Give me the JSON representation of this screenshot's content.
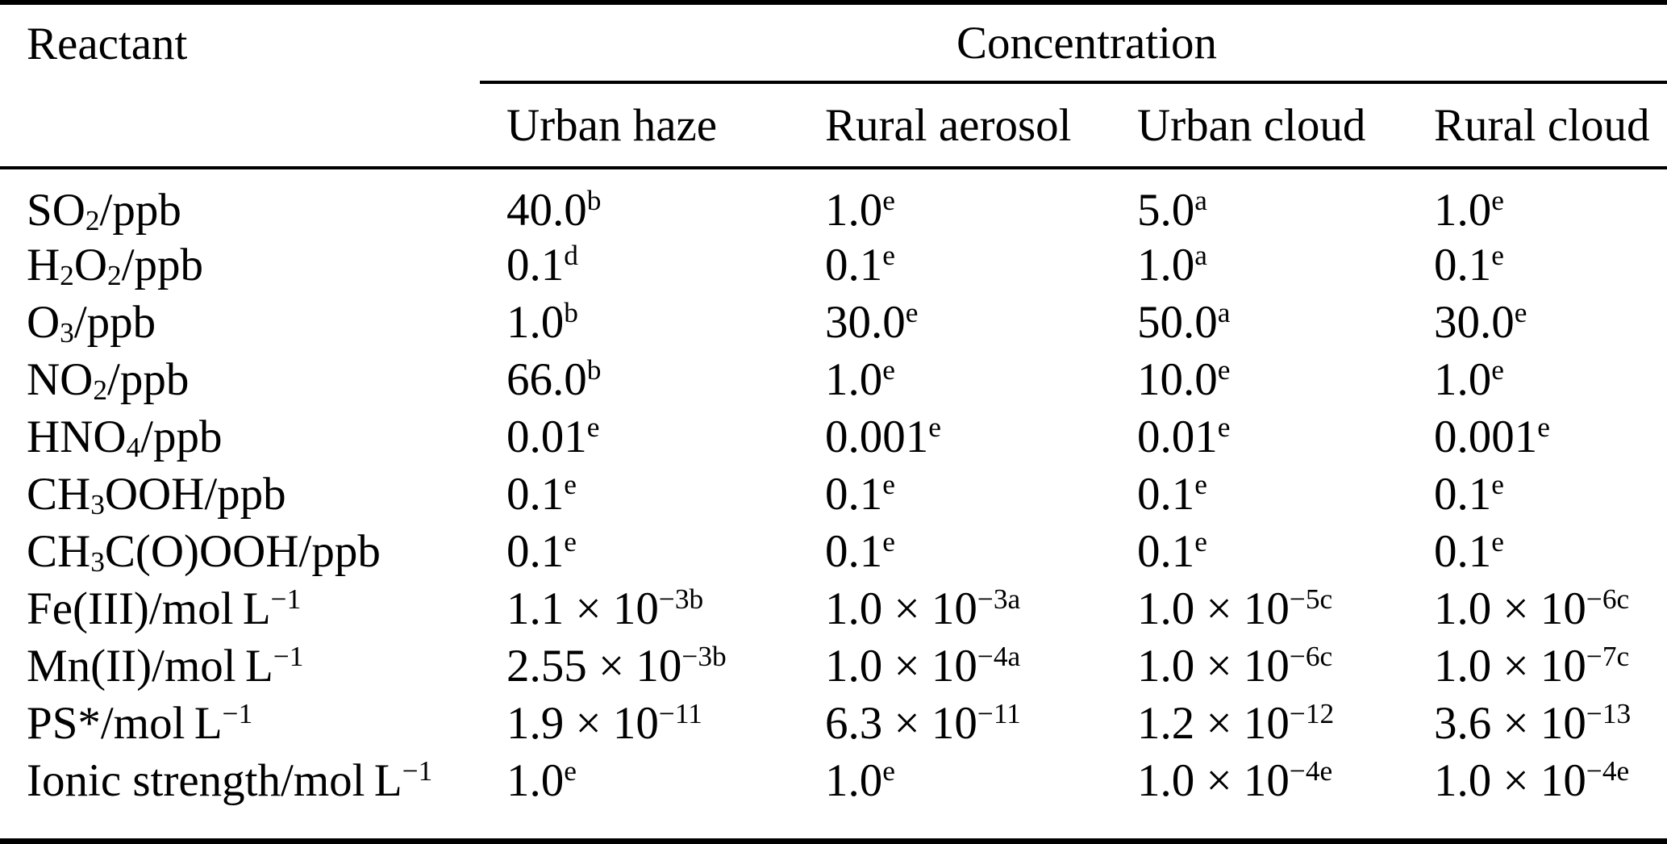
{
  "table": {
    "corner_header": "Reactant",
    "group_header": "Concentration",
    "column_headers": [
      "Urban haze",
      "Rural aerosol",
      "Urban cloud",
      "Rural cloud"
    ],
    "rows": [
      {
        "reactant": "SO_{2}/ppb",
        "values": [
          "40.0^{b}",
          "1.0^{e}",
          "5.0^{a}",
          "1.0^{e}"
        ]
      },
      {
        "reactant": "H_{2}O_{2}/ppb",
        "values": [
          "0.1^{d}",
          "0.1^{e}",
          "1.0^{a}",
          "0.1^{e}"
        ]
      },
      {
        "reactant": "O_{3}/ppb",
        "values": [
          "1.0^{b}",
          "30.0^{e}",
          "50.0^{a}",
          "30.0^{e}"
        ]
      },
      {
        "reactant": "NO_{2}/ppb",
        "values": [
          "66.0^{b}",
          "1.0^{e}",
          "10.0^{e}",
          "1.0^{e}"
        ]
      },
      {
        "reactant": "HNO_{4}/ppb",
        "values": [
          "0.01^{e}",
          "0.001^{e}",
          "0.01^{e}",
          "0.001^{e}"
        ]
      },
      {
        "reactant": "CH_{3}OOH/ppb",
        "values": [
          "0.1^{e}",
          "0.1^{e}",
          "0.1^{e}",
          "0.1^{e}"
        ]
      },
      {
        "reactant": "CH_{3}C(O)OOH/ppb",
        "values": [
          "0.1^{e}",
          "0.1^{e}",
          "0.1^{e}",
          "0.1^{e}"
        ]
      },
      {
        "reactant": "Fe(III)/mol L^{−1}",
        "values": [
          "1.1 × 10^{−3b}",
          "1.0 × 10^{−3a}",
          "1.0 × 10^{−5c}",
          "1.0 × 10^{−6c}"
        ]
      },
      {
        "reactant": "Mn(II)/mol L^{−1}",
        "values": [
          "2.55 × 10^{−3b}",
          "1.0 × 10^{−4a}",
          "1.0 × 10^{−6c}",
          "1.0 × 10^{−7c}"
        ]
      },
      {
        "reactant": "PS*/mol L^{−1}",
        "values": [
          "1.9 × 10^{−11}",
          "6.3 × 10^{−11}",
          "1.2 × 10^{−12}",
          "3.6 × 10^{−13}"
        ]
      },
      {
        "reactant": "Ionic strength/mol L^{−1}",
        "values": [
          "1.0^{e}",
          "1.0^{e}",
          "1.0 × 10^{−4e}",
          "1.0 × 10^{−4e}"
        ]
      }
    ],
    "colors": {
      "text": "#000000",
      "background": "#ffffff",
      "rule": "#000000"
    }
  }
}
